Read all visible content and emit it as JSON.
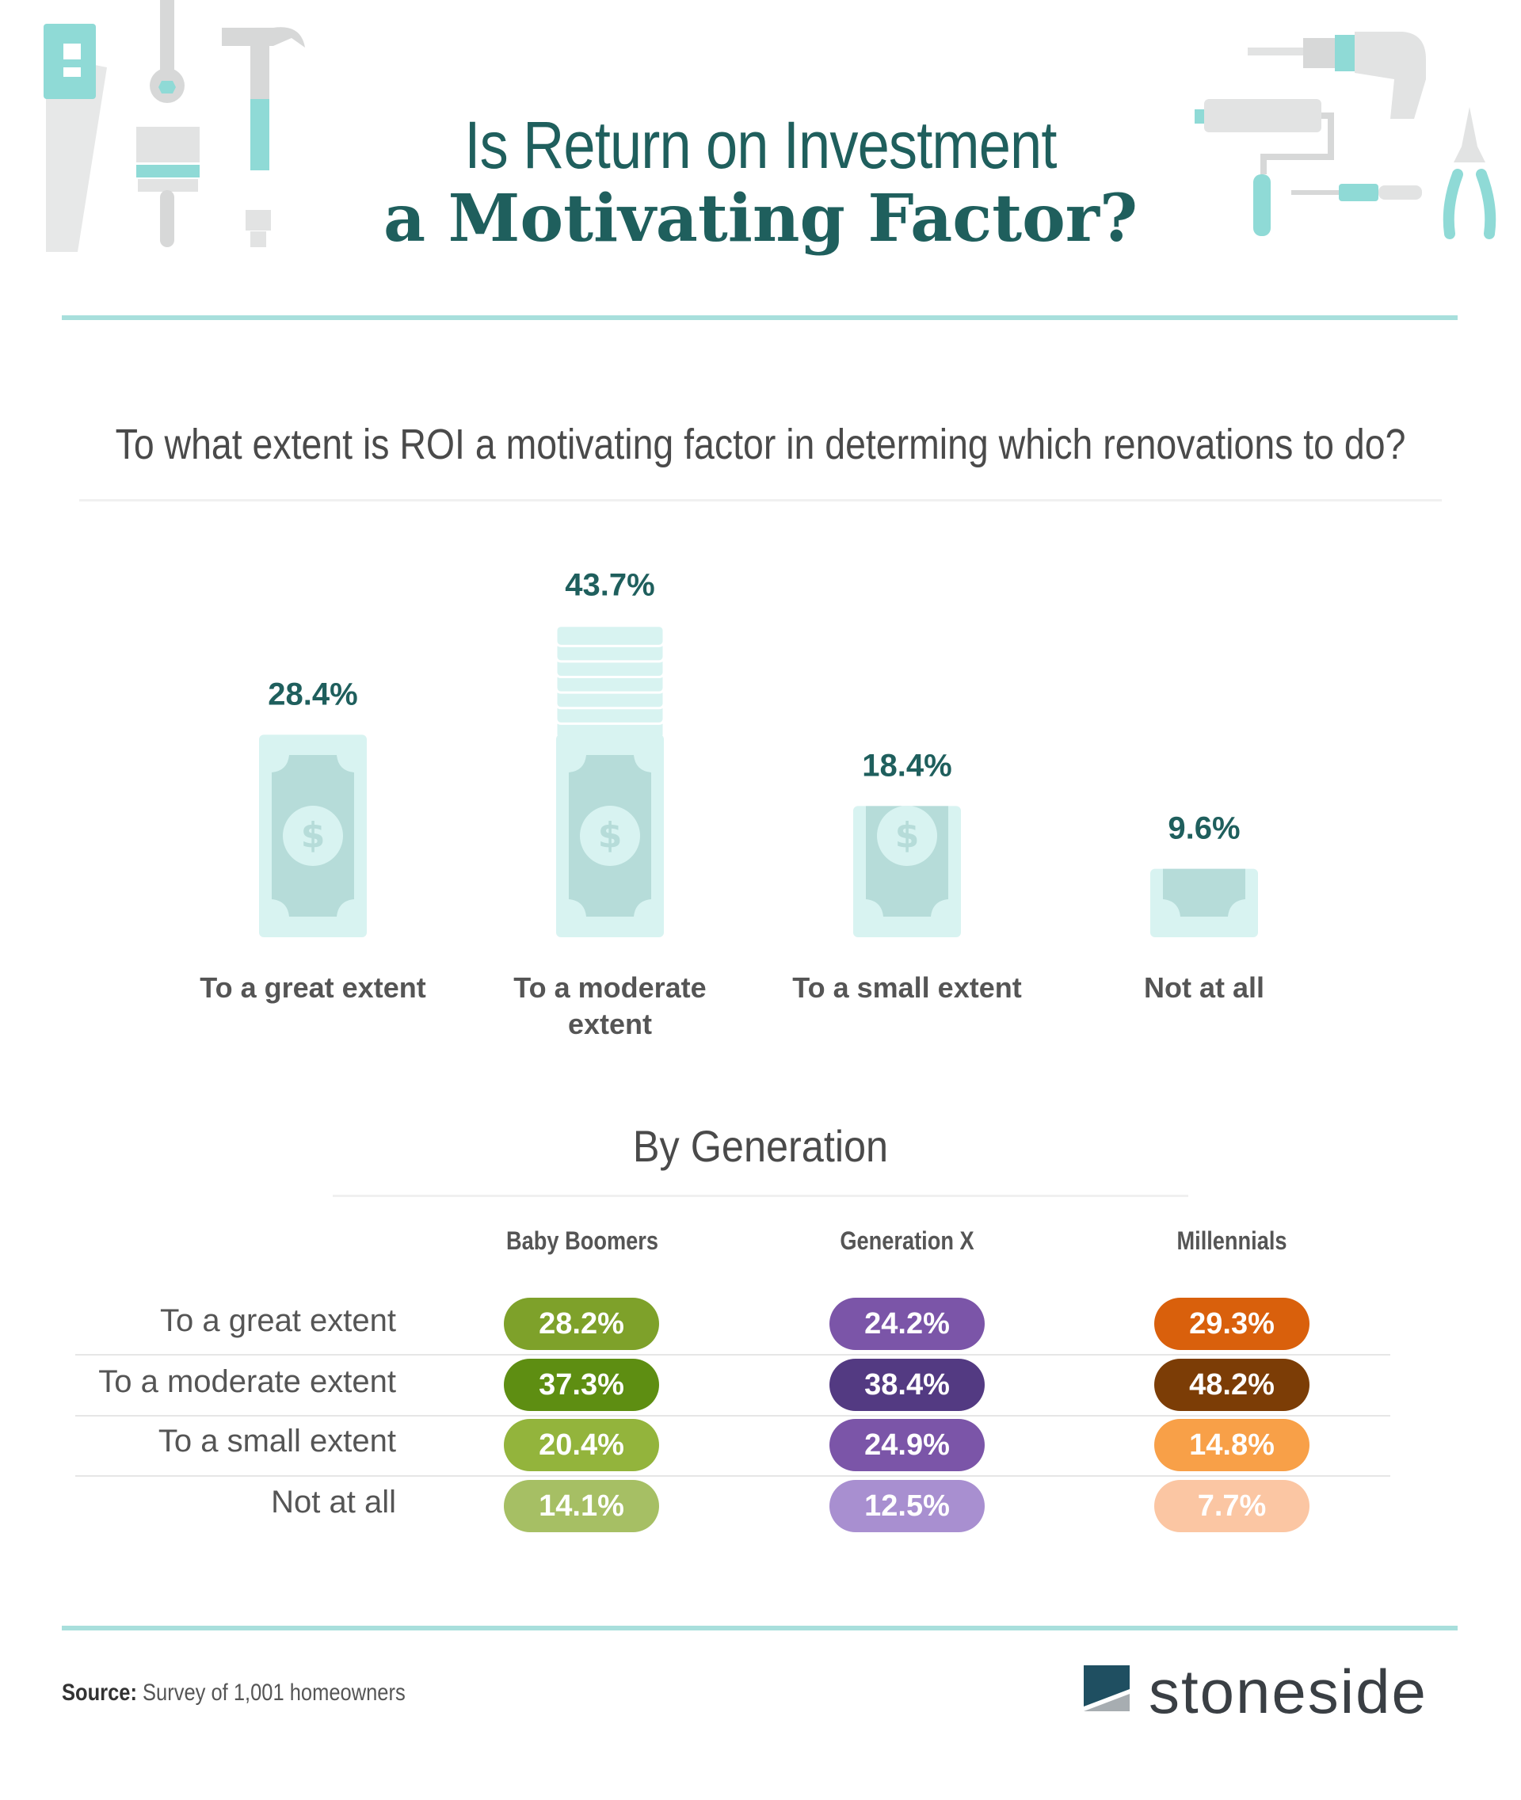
{
  "header": {
    "title_line1": "Is Return on Investment",
    "title_line2": "a Motivating Factor?"
  },
  "icons": [
    "saw-icon",
    "wrench-icon",
    "paintbrush-icon",
    "hammer-icon",
    "drill-icon",
    "paint-roller-icon",
    "screwdriver-icon",
    "pliers-icon"
  ],
  "colors": {
    "teal_dark": "#1f5f5d",
    "teal_light": "#a8dfdc",
    "money_bg": "#d8f3f1",
    "money_inner": "#b6dcd9"
  },
  "chart_data": [
    {
      "type": "bar",
      "title": "To what extent is ROI a motivating factor in determing which renovations to do?",
      "categories": [
        "To a great extent",
        "To a moderate extent",
        "To a small extent",
        "Not at all"
      ],
      "values": [
        28.4,
        43.7,
        18.4,
        9.6
      ],
      "value_labels": [
        "28.4%",
        "43.7%",
        "18.4%",
        "9.6%"
      ],
      "category_labels": [
        [
          "To a great extent"
        ],
        [
          "To a moderate",
          "extent"
        ],
        [
          "To a small extent"
        ],
        [
          "Not at all"
        ]
      ]
    },
    {
      "type": "table",
      "title": "By Generation",
      "columns": [
        "Baby Boomers",
        "Generation X",
        "Millennials"
      ],
      "rows": [
        "To a great extent",
        "To a moderate extent",
        "To a small extent",
        "Not at all"
      ],
      "series": [
        {
          "name": "Baby Boomers",
          "values": [
            28.2,
            37.3,
            20.4,
            14.1
          ],
          "labels": [
            "28.2%",
            "37.3%",
            "20.4%",
            "14.1%"
          ],
          "colors": [
            "#7ea12a",
            "#5e8e12",
            "#93b43c",
            "#a6bf64"
          ]
        },
        {
          "name": "Generation X",
          "values": [
            24.2,
            38.4,
            24.9,
            12.5
          ],
          "labels": [
            "24.2%",
            "38.4%",
            "24.9%",
            "12.5%"
          ],
          "colors": [
            "#7b55a8",
            "#533a82",
            "#7b55a8",
            "#a88fd0"
          ]
        },
        {
          "name": "Millennials",
          "values": [
            29.3,
            48.2,
            14.8,
            7.7
          ],
          "labels": [
            "29.3%",
            "48.2%",
            "14.8%",
            "7.7%"
          ],
          "colors": [
            "#d9600c",
            "#7c3d06",
            "#f8a048",
            "#fbc6a3"
          ]
        }
      ]
    }
  ],
  "footer": {
    "source_label": "Source:",
    "source_text": "Survey of 1,001 homeowners",
    "brand": "stoneside"
  }
}
